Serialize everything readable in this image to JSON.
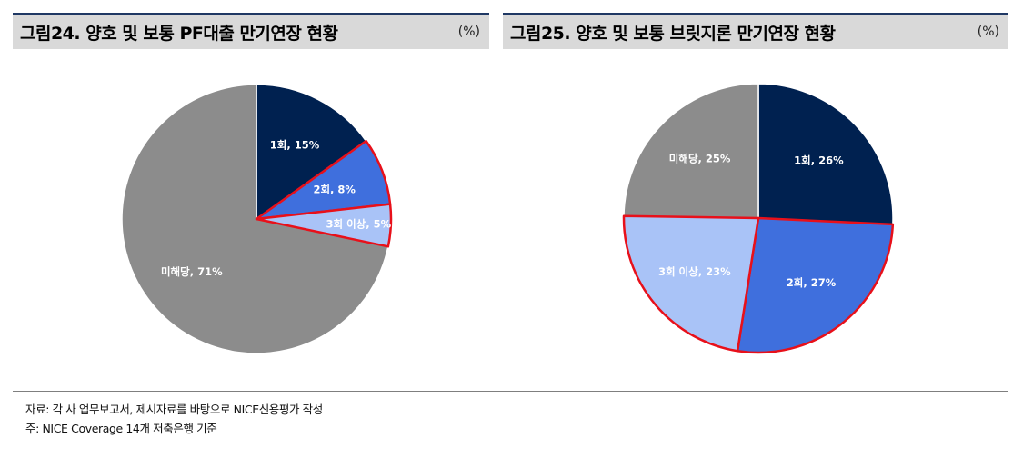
{
  "chart_data": [
    {
      "type": "pie",
      "title": "그림24. 양호 및 보통 PF대출 만기연장 현황",
      "unit": "(%)",
      "slices": [
        {
          "label": "1회",
          "value": 15,
          "display": "1회, 15%",
          "color": "#002150",
          "highlight": false
        },
        {
          "label": "2회",
          "value": 8,
          "display": "2회, 8%",
          "color": "#3f6fdd",
          "highlight": true
        },
        {
          "label": "3회 이상",
          "value": 5,
          "display": "3회 이상, 5%",
          "color": "#a9c3f7",
          "highlight": true
        },
        {
          "label": "미해당",
          "value": 71,
          "display": "미해당, 71%",
          "color": "#8c8c8c",
          "highlight": false
        }
      ]
    },
    {
      "type": "pie",
      "title": "그림25.  양호 및 보통 브릿지론 만기연장 현황",
      "unit": "(%)",
      "slices": [
        {
          "label": "1회",
          "value": 26,
          "display": "1회, 26%",
          "color": "#002150",
          "highlight": false
        },
        {
          "label": "2회",
          "value": 27,
          "display": "2회, 27%",
          "color": "#3f6fdd",
          "highlight": true
        },
        {
          "label": "3회 이상",
          "value": 23,
          "display": "3회 이상, 23%",
          "color": "#a9c3f7",
          "highlight": true
        },
        {
          "label": "미해당",
          "value": 25,
          "display": "미해당, 25%",
          "color": "#8c8c8c",
          "highlight": false
        }
      ]
    }
  ],
  "colors": {
    "highlight_stroke": "#e8101a",
    "header_line": "#1f3864",
    "header_bg": "#d9d9d9"
  },
  "footnotes": {
    "source": "자료: 각 사 업무보고서, 제시자료를 바탕으로 NICE신용평가 작성",
    "basis": "주: NICE Coverage 14개 저축은행 기준"
  }
}
